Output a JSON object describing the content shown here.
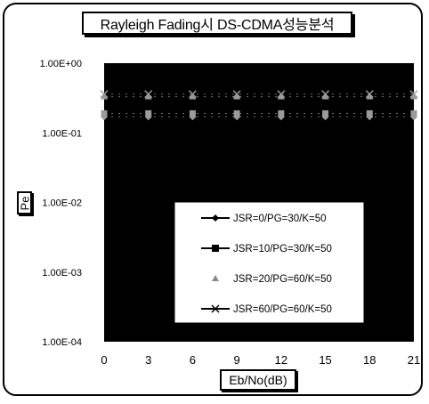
{
  "chart_data": {
    "type": "line",
    "title": "Rayleigh Fading시 DS-CDMA성능분석",
    "xlabel": "Eb/No(dB)",
    "ylabel": "Pe",
    "y_scale": "log",
    "ylim": [
      0.0001,
      1.0
    ],
    "xlim": [
      0,
      21
    ],
    "x_ticks": [
      "0",
      "3",
      "6",
      "9",
      "12",
      "15",
      "18",
      "21"
    ],
    "y_ticks": [
      "1.00E+00",
      "1.00E-01",
      "1.00E-02",
      "1.00E-03",
      "1.00E-04"
    ],
    "plot_background": "#000000",
    "legend_placement": "lower-right inside plot",
    "x": [
      0,
      3,
      6,
      9,
      12,
      15,
      18,
      21
    ],
    "series": [
      {
        "name": "JSR=0/PG=30/K=50",
        "marker": "diamond",
        "values": [
          0.17,
          0.17,
          0.17,
          0.17,
          0.17,
          0.17,
          0.17,
          0.17
        ]
      },
      {
        "name": "JSR=10/PG=30/K=50",
        "marker": "square",
        "values": [
          0.19,
          0.19,
          0.19,
          0.19,
          0.19,
          0.19,
          0.19,
          0.19
        ]
      },
      {
        "name": "JSR=20/PG=60/K=50",
        "marker": "triangle",
        "values": [
          0.33,
          0.33,
          0.33,
          0.33,
          0.33,
          0.33,
          0.33,
          0.33
        ]
      },
      {
        "name": "JSR=60/PG=60/K=50",
        "marker": "x",
        "values": [
          0.36,
          0.36,
          0.36,
          0.36,
          0.36,
          0.36,
          0.36,
          0.36
        ]
      }
    ]
  }
}
